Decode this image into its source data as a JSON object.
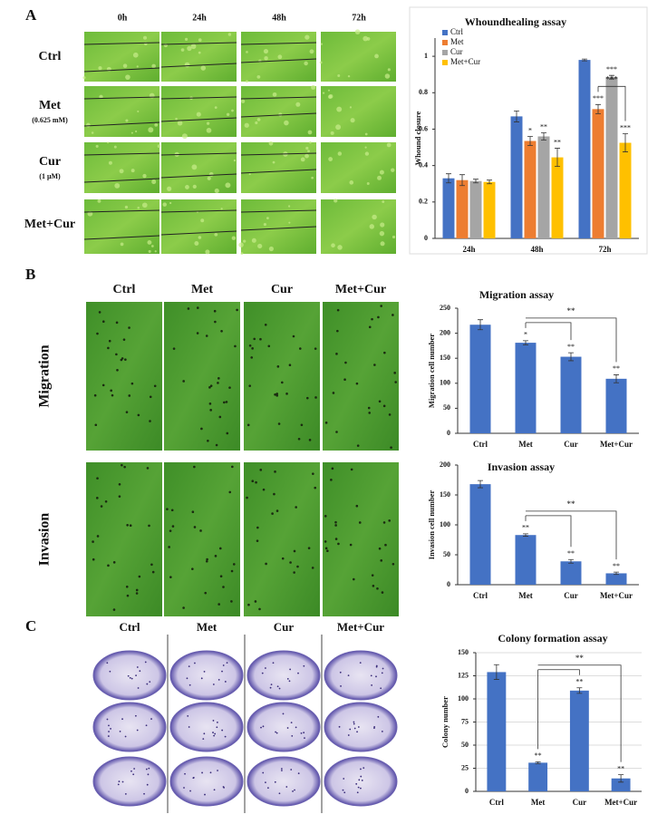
{
  "panel_a": {
    "label": "A",
    "columns": [
      "0h",
      "24h",
      "48h",
      "72h"
    ],
    "rows": [
      {
        "name": "Ctrl"
      },
      {
        "name": "Met",
        "note": "(0.625 mM)"
      },
      {
        "name": "Cur",
        "note": "(1 μM)"
      },
      {
        "name": "Met+Cur"
      }
    ]
  },
  "panel_b": {
    "label": "B",
    "columns": [
      "Ctrl",
      "Met",
      "Cur",
      "Met+Cur"
    ],
    "rows": [
      "Migration",
      "Invasion"
    ]
  },
  "panel_c": {
    "label": "C",
    "columns": [
      "Ctrl",
      "Met",
      "Cur",
      "Met+Cur"
    ]
  },
  "chart_data": [
    {
      "type": "bar",
      "title": "Whoundhealing assay",
      "y_label": "Whound closure",
      "categories": [
        "24h",
        "48h",
        "72h"
      ],
      "series": [
        {
          "name": "Ctrl",
          "color": "#4472c4",
          "values": [
            0.33,
            0.67,
            0.98
          ],
          "errors": [
            0.025,
            0.03,
            0.005
          ]
        },
        {
          "name": "Met",
          "color": "#ed7d31",
          "values": [
            0.32,
            0.535,
            0.71
          ],
          "errors": [
            0.03,
            0.025,
            0.025
          ]
        },
        {
          "name": "Cur",
          "color": "#a5a5a5",
          "values": [
            0.315,
            0.56,
            0.885
          ],
          "errors": [
            0.01,
            0.02,
            0.01
          ]
        },
        {
          "name": "Met+Cur",
          "color": "#ffc000",
          "values": [
            0.31,
            0.445,
            0.525
          ],
          "errors": [
            0.01,
            0.05,
            0.05
          ]
        }
      ],
      "ylim": [
        0,
        1.1
      ],
      "yticks": [
        0,
        0.2,
        0.4,
        0.6,
        0.8,
        1
      ],
      "grid": false,
      "legend": "top-left",
      "annotations": [
        {
          "series": 1,
          "category": 1,
          "text": "*"
        },
        {
          "series": 2,
          "category": 1,
          "text": "**"
        },
        {
          "series": 3,
          "category": 1,
          "text": "**"
        },
        {
          "series": 1,
          "category": 2,
          "text": "***"
        },
        {
          "series": 2,
          "category": 2,
          "text": "***"
        },
        {
          "series": 3,
          "category": 2,
          "text": "***"
        }
      ],
      "brackets": [
        {
          "category": 2,
          "from": 1,
          "to": [
            3
          ],
          "text": "***"
        }
      ]
    },
    {
      "type": "bar",
      "title": "Migration assay",
      "y_label": "Migration cell number",
      "categories": [
        "Ctrl",
        "Met",
        "Cur",
        "Met+Cur"
      ],
      "values": [
        217,
        181,
        153,
        109
      ],
      "errors": [
        10,
        4,
        8,
        8
      ],
      "color": "#4472c4",
      "ylim": [
        0,
        250
      ],
      "yticks": [
        0,
        50,
        100,
        150,
        200,
        250
      ],
      "grid": false,
      "annotations": [
        {
          "category": 1,
          "text": "*"
        },
        {
          "category": 2,
          "text": "**"
        },
        {
          "category": 3,
          "text": "**"
        }
      ],
      "brackets": [
        {
          "from": 1,
          "to": [
            2,
            3
          ],
          "text": "**"
        }
      ]
    },
    {
      "type": "bar",
      "title": "Invasion assay",
      "y_label": "Invasion cell number",
      "categories": [
        "Ctrl",
        "Met",
        "Cur",
        "Met+Cur"
      ],
      "values": [
        168,
        83,
        39,
        19
      ],
      "errors": [
        6,
        2,
        3,
        2
      ],
      "color": "#4472c4",
      "ylim": [
        0,
        200
      ],
      "yticks": [
        0,
        50,
        100,
        150,
        200
      ],
      "grid": false,
      "annotations": [
        {
          "category": 1,
          "text": "**"
        },
        {
          "category": 2,
          "text": "**"
        },
        {
          "category": 3,
          "text": "**"
        }
      ],
      "brackets": [
        {
          "from": 1,
          "to": [
            2,
            3
          ],
          "text": "**"
        }
      ]
    },
    {
      "type": "bar",
      "title": "Colony formation assay",
      "y_label": "Colony number",
      "categories": [
        "Ctrl",
        "Met",
        "Cur",
        "Met+Cur"
      ],
      "values": [
        129,
        31,
        109,
        14
      ],
      "errors": [
        8,
        1,
        3,
        4
      ],
      "color": "#4472c4",
      "ylim": [
        0,
        150
      ],
      "yticks": [
        0,
        25,
        50,
        75,
        100,
        125,
        150
      ],
      "grid": true,
      "annotations": [
        {
          "category": 1,
          "text": "**"
        },
        {
          "category": 2,
          "text": "**"
        },
        {
          "category": 3,
          "text": "**"
        }
      ],
      "brackets": [
        {
          "from": 1,
          "to": [
            2,
            3
          ],
          "text": "**"
        }
      ]
    }
  ]
}
